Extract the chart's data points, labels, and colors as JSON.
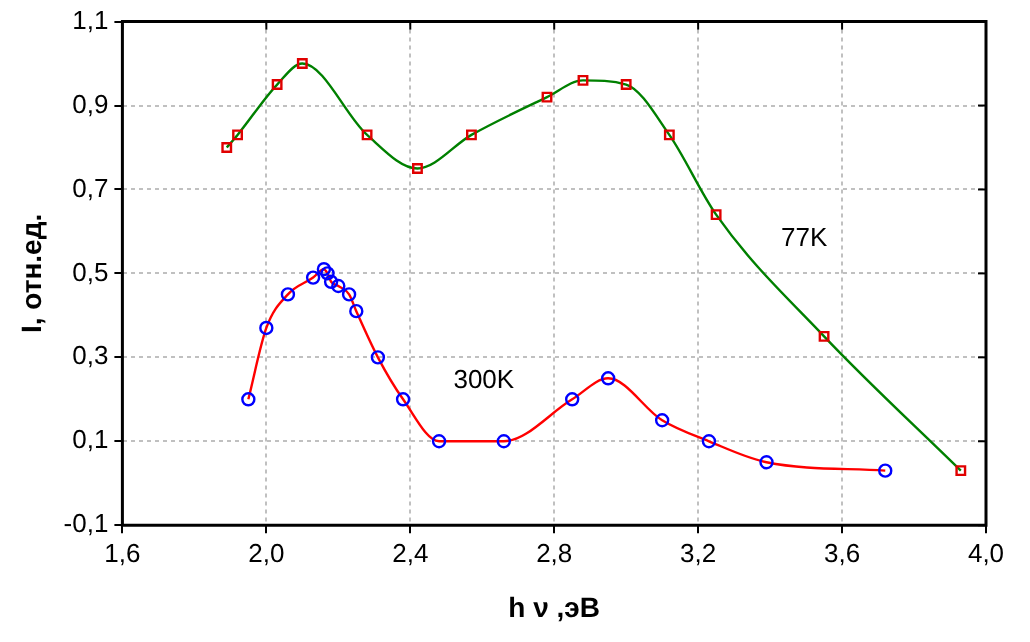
{
  "chart_data": {
    "type": "line",
    "xlabel": "h ν ,эВ",
    "ylabel": "I, отн.ед.",
    "xlim": [
      1.6,
      4.0
    ],
    "xticks": [
      {
        "value": 1.6,
        "label": "1,6"
      },
      {
        "value": 2.0,
        "label": "2,0"
      },
      {
        "value": 2.4,
        "label": "2,4"
      },
      {
        "value": 2.8,
        "label": "2,8"
      },
      {
        "value": 3.2,
        "label": "3,2"
      },
      {
        "value": 3.6,
        "label": "3,6"
      },
      {
        "value": 4.0,
        "label": "4,0"
      }
    ],
    "ylim": [
      -0.1,
      1.1
    ],
    "yticks": [
      {
        "value": -0.1,
        "label": "-0,1"
      },
      {
        "value": 0.1,
        "label": "0,1"
      },
      {
        "value": 0.3,
        "label": "0,3"
      },
      {
        "value": 0.5,
        "label": "0,5"
      },
      {
        "value": 0.7,
        "label": "0,7"
      },
      {
        "value": 0.9,
        "label": "0,9"
      },
      {
        "value": 1.1,
        "label": "1,1"
      }
    ],
    "grid": true,
    "legend": false,
    "series": [
      {
        "name": "77K",
        "color": "#008000",
        "marker": "square",
        "x": [
          1.89,
          1.92,
          2.03,
          2.1,
          2.28,
          2.42,
          2.57,
          2.78,
          2.88,
          3.0,
          3.12,
          3.25,
          3.55,
          3.93
        ],
        "values": [
          0.8,
          0.83,
          0.95,
          1.0,
          0.83,
          0.75,
          0.83,
          0.92,
          0.96,
          0.95,
          0.83,
          0.64,
          0.35,
          0.03
        ]
      },
      {
        "name": "300K",
        "color": "#ff0000",
        "marker": "circle",
        "x": [
          1.95,
          2.0,
          2.06,
          2.13,
          2.16,
          2.17,
          2.18,
          2.2,
          2.23,
          2.25,
          2.31,
          2.38,
          2.48,
          2.66,
          2.85,
          2.95,
          3.1,
          3.23,
          3.39,
          3.72
        ],
        "values": [
          0.2,
          0.37,
          0.45,
          0.49,
          0.51,
          0.5,
          0.48,
          0.47,
          0.45,
          0.41,
          0.3,
          0.2,
          0.1,
          0.1,
          0.2,
          0.25,
          0.15,
          0.1,
          0.05,
          0.03
        ]
      }
    ]
  }
}
